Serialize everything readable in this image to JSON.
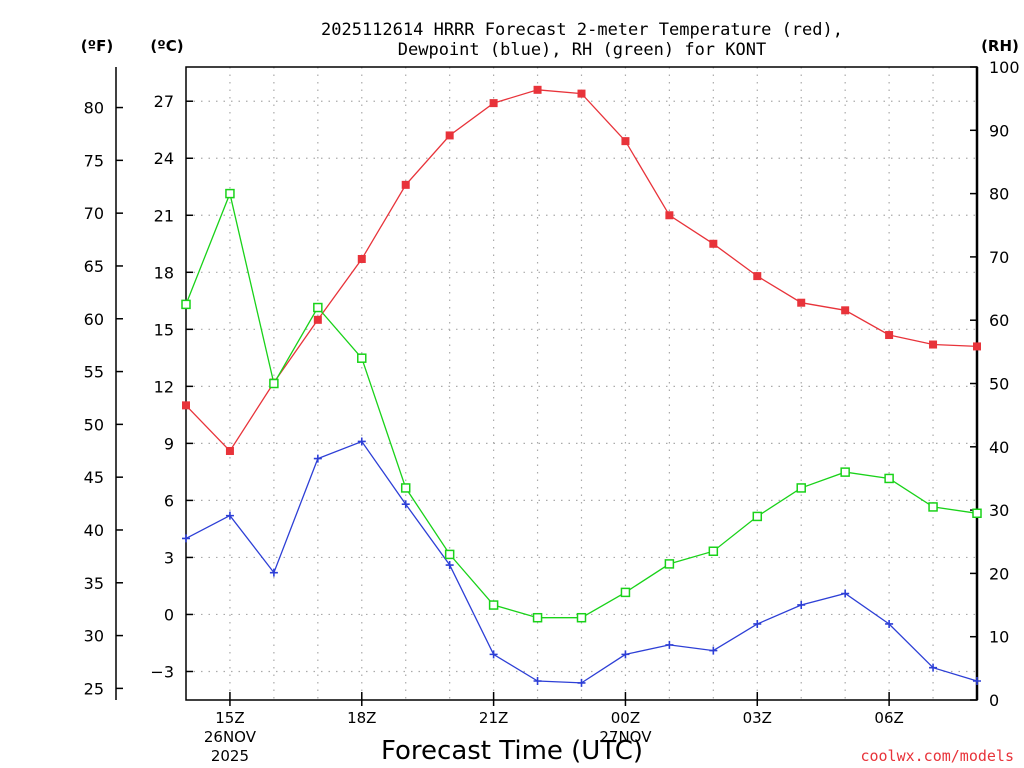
{
  "chart_data": {
    "type": "line",
    "title_line1": "2025112614 HRRR Forecast 2-meter Temperature (red),",
    "title_line2": "Dewpoint (blue), RH (green) for KONT",
    "xlabel": "Forecast Time (UTC)",
    "left_outer_unit": "(ºF)",
    "left_inner_unit": "(ºC)",
    "right_unit": "(RH)",
    "credit": "coolwx.com/models",
    "x_range": [
      14,
      32
    ],
    "x_ticks": [
      {
        "x": 15,
        "label": "15Z",
        "sub1": "26NOV",
        "sub2": "2025"
      },
      {
        "x": 18,
        "label": "18Z",
        "sub1": "",
        "sub2": ""
      },
      {
        "x": 21,
        "label": "21Z",
        "sub1": "",
        "sub2": ""
      },
      {
        "x": 24,
        "label": "00Z",
        "sub1": "27NOV",
        "sub2": ""
      },
      {
        "x": 27,
        "label": "03Z",
        "sub1": "",
        "sub2": ""
      },
      {
        "x": 30,
        "label": "06Z",
        "sub1": "",
        "sub2": ""
      }
    ],
    "c_range": [
      -4.5,
      28.8
    ],
    "c_ticks": [
      "27",
      "24",
      "21",
      "18",
      "15",
      "12",
      "9",
      "6",
      "3",
      "0",
      "−3"
    ],
    "c_tick_values": [
      27,
      24,
      21,
      18,
      15,
      12,
      9,
      6,
      3,
      0,
      -3
    ],
    "f_ticks": [
      "80",
      "75",
      "70",
      "65",
      "60",
      "55",
      "50",
      "45",
      "40",
      "35",
      "30",
      "25"
    ],
    "f_tick_values": [
      80,
      75,
      70,
      65,
      60,
      55,
      50,
      45,
      40,
      35,
      30,
      25
    ],
    "rh_range": [
      0,
      100
    ],
    "rh_ticks": [
      "100",
      "90",
      "80",
      "70",
      "60",
      "50",
      "40",
      "30",
      "20",
      "10",
      "0"
    ],
    "rh_tick_values": [
      100,
      90,
      80,
      70,
      60,
      50,
      40,
      30,
      20,
      10,
      0
    ],
    "x": [
      14,
      15,
      16,
      17,
      18,
      19,
      20,
      21,
      22,
      23,
      24,
      25,
      26,
      27,
      28,
      29,
      30,
      31,
      32
    ],
    "series": [
      {
        "name": "2-meter Temperature",
        "unit": "C",
        "color": "#e8333a",
        "marker": "filled-square",
        "values": [
          11.0,
          8.6,
          12.2,
          15.5,
          18.7,
          22.6,
          25.2,
          26.9,
          27.6,
          27.4,
          24.9,
          21.0,
          19.5,
          17.8,
          16.4,
          16.0,
          14.7,
          14.2,
          14.1
        ]
      },
      {
        "name": "Dewpoint",
        "unit": "C",
        "color": "#2d3fd6",
        "marker": "plus",
        "values": [
          4.0,
          5.2,
          2.2,
          8.2,
          9.1,
          5.8,
          2.6,
          -2.1,
          -3.5,
          -3.6,
          -2.1,
          -1.6,
          -1.9,
          -0.5,
          0.5,
          1.1,
          -0.5,
          -2.8,
          -3.5
        ]
      },
      {
        "name": "RH",
        "unit": "%",
        "color": "#19d219",
        "marker": "open-square",
        "values": [
          62.5,
          80.0,
          50.0,
          62.0,
          54.0,
          33.5,
          23.0,
          15.0,
          13.0,
          13.0,
          17.0,
          21.5,
          23.5,
          29.0,
          33.5,
          36.0,
          35.0,
          30.5,
          29.5
        ]
      }
    ]
  }
}
